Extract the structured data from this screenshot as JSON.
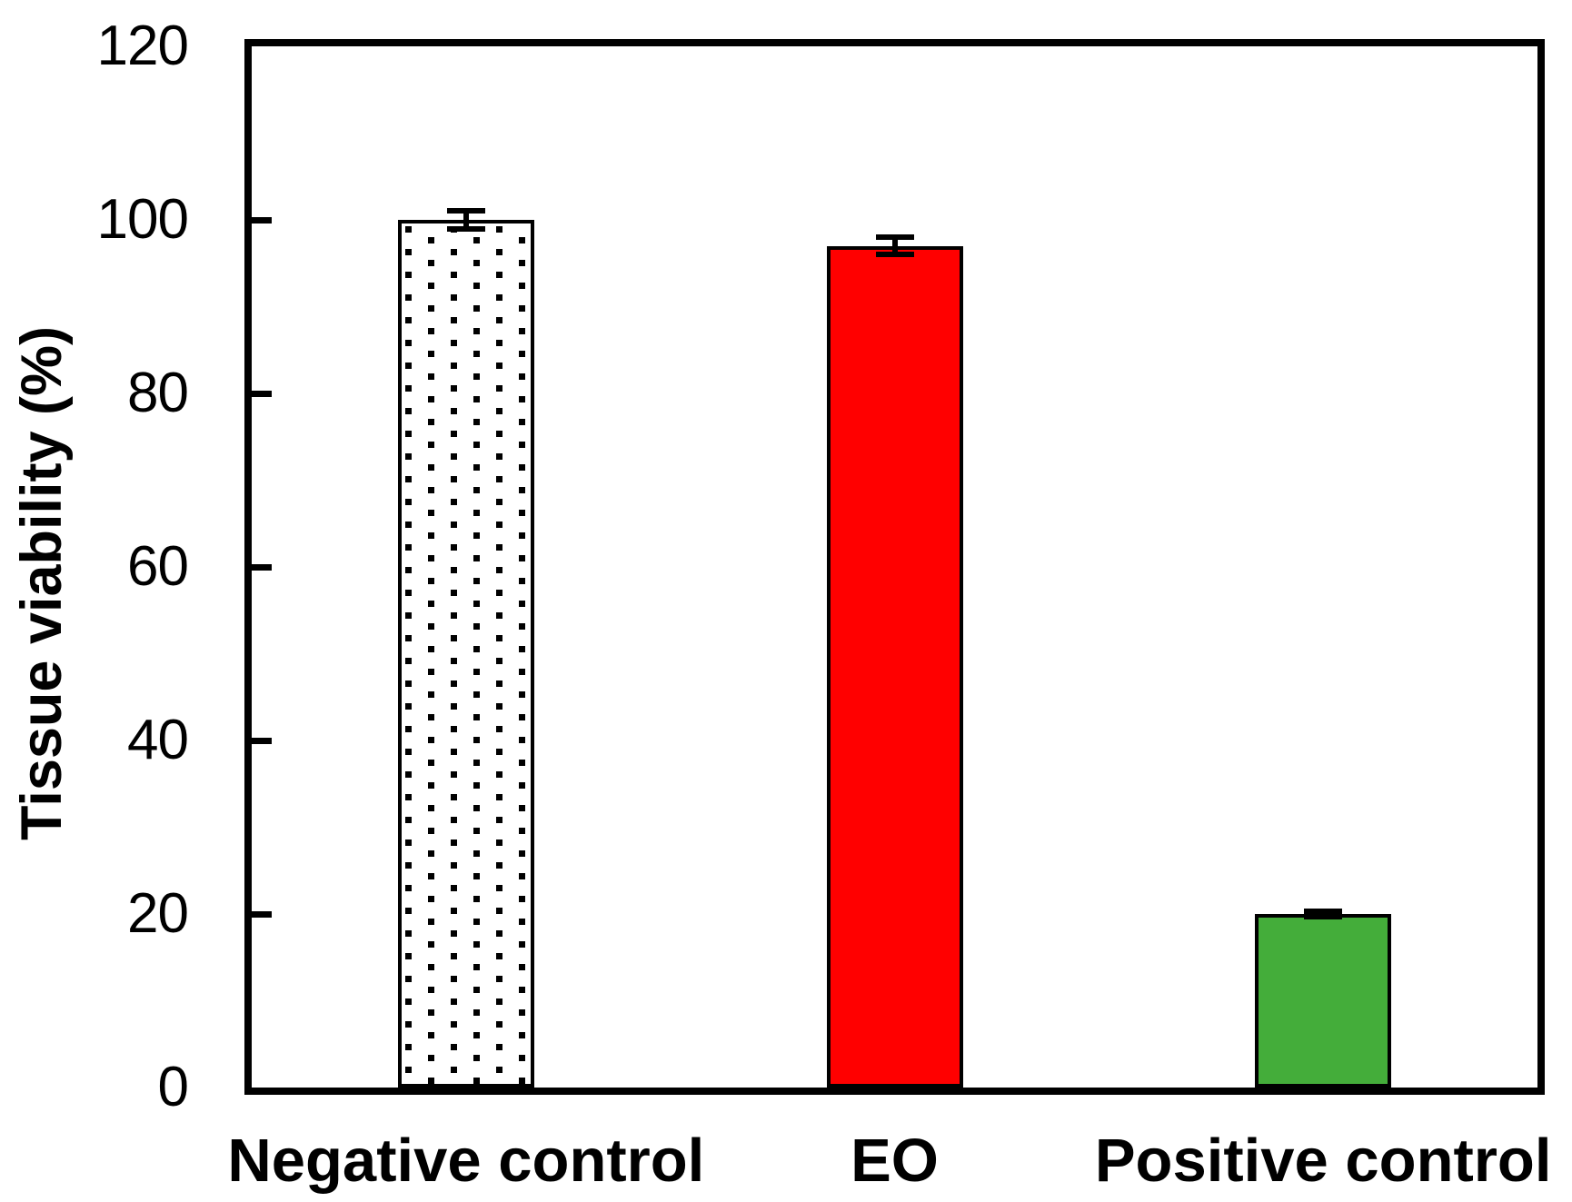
{
  "chart_data": {
    "type": "bar",
    "title": "",
    "ylabel": "Tissue viability (%)",
    "xlabel": "",
    "categories": [
      "Negative control",
      "EO",
      "Positive control"
    ],
    "values": [
      100,
      97,
      20
    ],
    "error_bars": [
      1,
      1,
      0.3
    ],
    "ylim": [
      0,
      120
    ],
    "yticks": [
      0,
      20,
      40,
      60,
      80,
      100,
      120
    ],
    "grid": false,
    "legend": "none",
    "bar_styles": [
      {
        "name": "negative-control-bar",
        "fill": "#FFFFFF",
        "pattern": "black-square-dots",
        "outline": "#000000"
      },
      {
        "name": "eo-bar",
        "fill": "#FF0000",
        "pattern": "solid",
        "outline": "#000000"
      },
      {
        "name": "positive-control-bar",
        "fill": "#44AD3A",
        "pattern": "solid",
        "outline": "#000000"
      }
    ]
  },
  "colors": {
    "background": "#FFFFFF",
    "axis_and_text": "#000000",
    "eo_red": "#FF0000",
    "positive_green": "#44AD3A",
    "negative_dot": "#000000"
  }
}
